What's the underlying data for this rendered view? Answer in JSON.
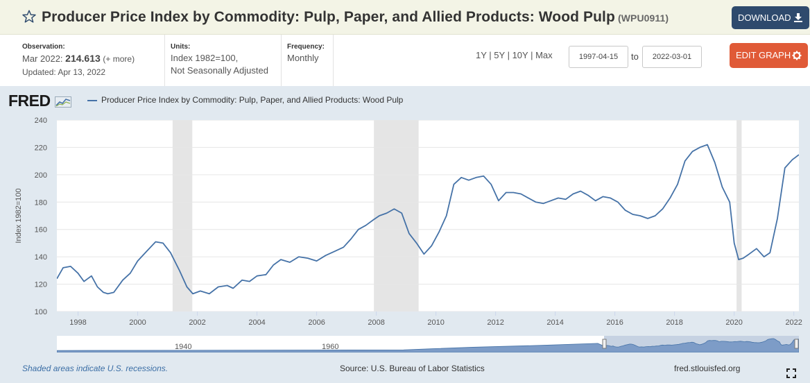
{
  "header": {
    "title": "Producer Price Index by Commodity: Pulp, Paper, and Allied Products: Wood Pulp",
    "series_id": "(WPU0911)",
    "download_label": "DOWNLOAD"
  },
  "meta": {
    "observation_label": "Observation:",
    "observation_date": "Mar 2022:",
    "observation_value": "214.613",
    "observation_more": "(+ more)",
    "updated": "Updated: Apr 13, 2022",
    "units_label": "Units:",
    "units_line1": "Index 1982=100,",
    "units_line2": "Not Seasonally Adjusted",
    "frequency_label": "Frequency:",
    "frequency_value": "Monthly"
  },
  "controls": {
    "ranges": [
      "1Y",
      "5Y",
      "10Y",
      "Max"
    ],
    "start_date": "1997-04-15",
    "to_label": "to",
    "end_date": "2022-03-01",
    "edit_label": "EDIT GRAPH"
  },
  "chart_header": {
    "logo_text": "FRED",
    "legend_label": "Producer Price Index by Commodity: Pulp, Paper, and Allied Products: Wood Pulp"
  },
  "footer": {
    "recession_note": "Shaded areas indicate U.S. recessions.",
    "source": "Source: U.S. Bureau of Labor Statistics",
    "site": "fred.stlouisfed.org"
  },
  "colors": {
    "line": "#4572a7",
    "recession": "#e5e5e5",
    "background": "#e1e9f0",
    "download": "#2e4a6d",
    "edit": "#e05a37"
  },
  "chart_data": {
    "type": "line",
    "ylabel": "Index 1982=100",
    "ylim": [
      100,
      240
    ],
    "yticks": [
      100,
      120,
      140,
      160,
      180,
      200,
      220,
      240
    ],
    "xlim": [
      1997.29,
      2022.17
    ],
    "xticks": [
      "1998",
      "2000",
      "2002",
      "2004",
      "2006",
      "2008",
      "2010",
      "2012",
      "2014",
      "2016",
      "2018",
      "2020",
      "2022"
    ],
    "grid": "horizontal",
    "recessions": [
      [
        2001.17,
        2001.83
      ],
      [
        2007.92,
        2009.42
      ],
      [
        2020.08,
        2020.25
      ]
    ],
    "navigator_labels": [
      "1940",
      "1960"
    ],
    "series": [
      {
        "name": "Producer Price Index by Commodity: Pulp, Paper, and Allied Products: Wood Pulp",
        "x": [
          1997.29,
          1997.5,
          1997.75,
          1998.0,
          1998.2,
          1998.45,
          1998.65,
          1998.85,
          1999.0,
          1999.2,
          1999.5,
          1999.75,
          2000.0,
          2000.3,
          2000.6,
          2000.85,
          2001.1,
          2001.4,
          2001.65,
          2001.85,
          2002.1,
          2002.4,
          2002.7,
          2003.0,
          2003.2,
          2003.5,
          2003.75,
          2004.0,
          2004.3,
          2004.55,
          2004.8,
          2005.1,
          2005.4,
          2005.7,
          2006.0,
          2006.3,
          2006.6,
          2006.9,
          2007.15,
          2007.4,
          2007.65,
          2007.9,
          2008.1,
          2008.35,
          2008.6,
          2008.85,
          2009.1,
          2009.35,
          2009.6,
          2009.85,
          2010.1,
          2010.35,
          2010.6,
          2010.85,
          2011.1,
          2011.35,
          2011.6,
          2011.85,
          2012.1,
          2012.35,
          2012.6,
          2012.85,
          2013.1,
          2013.35,
          2013.6,
          2013.85,
          2014.1,
          2014.35,
          2014.6,
          2014.85,
          2015.1,
          2015.35,
          2015.6,
          2015.85,
          2016.1,
          2016.35,
          2016.6,
          2016.85,
          2017.1,
          2017.35,
          2017.6,
          2017.85,
          2018.1,
          2018.35,
          2018.6,
          2018.85,
          2019.1,
          2019.35,
          2019.6,
          2019.85,
          2020.0,
          2020.15,
          2020.3,
          2020.5,
          2020.75,
          2021.0,
          2021.2,
          2021.45,
          2021.7,
          2021.95,
          2022.17
        ],
        "values": [
          124,
          132,
          133,
          128,
          122,
          126,
          118,
          114,
          113,
          114,
          123,
          128,
          137,
          144,
          151,
          150,
          143,
          130,
          118,
          113,
          115,
          113,
          118,
          119,
          117,
          123,
          122,
          126,
          127,
          134,
          138,
          136,
          140,
          139,
          137,
          141,
          144,
          147,
          153,
          160,
          163,
          167,
          170,
          172,
          175,
          172,
          157,
          150,
          142,
          148,
          158,
          170,
          193,
          198,
          196,
          198,
          199,
          193,
          181,
          187,
          187,
          186,
          183,
          180,
          179,
          181,
          183,
          182,
          186,
          188,
          185,
          181,
          184,
          183,
          180,
          174,
          171,
          170,
          168,
          170,
          175,
          183,
          193,
          210,
          217,
          220,
          222,
          209,
          191,
          180,
          150,
          138,
          139,
          142,
          146,
          140,
          143,
          168,
          205,
          211,
          214.613
        ]
      }
    ]
  }
}
